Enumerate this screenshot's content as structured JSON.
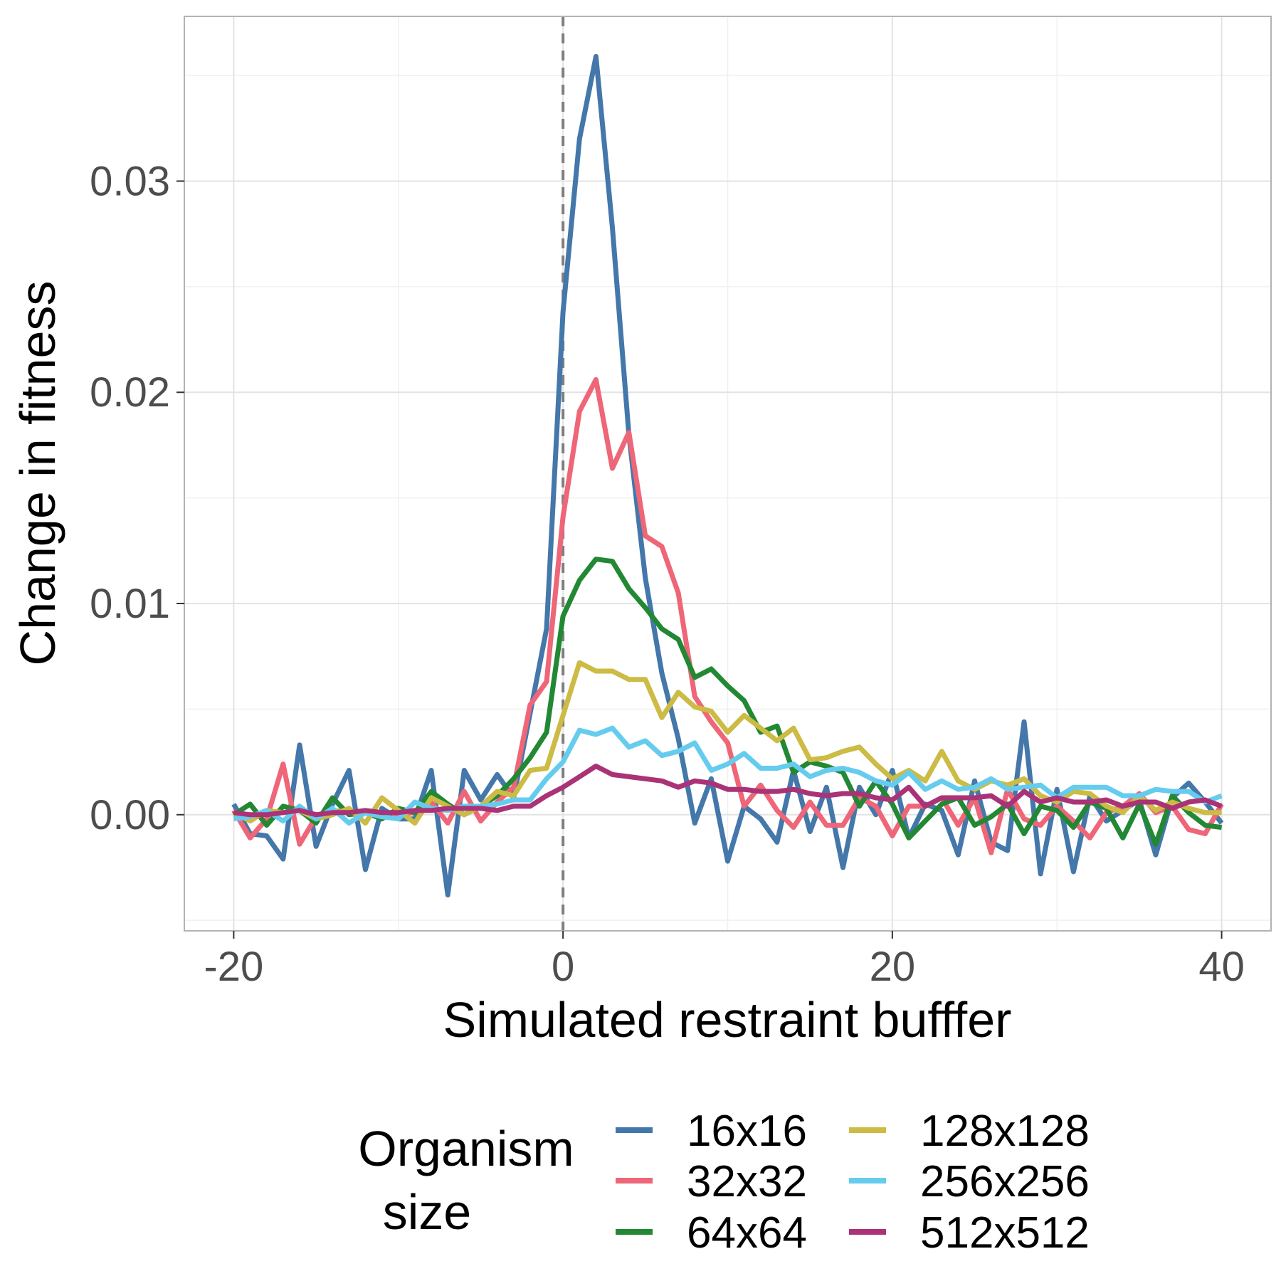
{
  "chart_data": {
    "type": "line",
    "xlabel": "Simulated restraint bufffer",
    "ylabel": "Change in fitness",
    "xlim": [
      -23,
      43
    ],
    "ylim": [
      -0.0055,
      0.0378
    ],
    "x_ticks": [
      -20,
      0,
      20,
      40
    ],
    "x_tick_labels": [
      "-20",
      "0",
      "20",
      "40"
    ],
    "y_ticks": [
      0.0,
      0.01,
      0.02,
      0.03
    ],
    "y_tick_labels": [
      "0.00",
      "0.01",
      "0.02",
      "0.03"
    ],
    "grid": true,
    "reference_line": {
      "x": 0,
      "style": "dashed"
    },
    "legend": {
      "title_lines": [
        "Organism",
        "size"
      ],
      "placement": "bottom",
      "columns": 2
    },
    "series": [
      {
        "name": "16x16",
        "color": "#4477AA",
        "x": [
          -20,
          -19,
          -18,
          -17,
          -16,
          -15,
          -14,
          -13,
          -12,
          -11,
          -10,
          -9,
          -8,
          -7,
          -6,
          -5,
          -4,
          -3,
          -2,
          -1,
          0,
          1,
          2,
          3,
          4,
          5,
          6,
          7,
          8,
          9,
          10,
          11,
          12,
          13,
          14,
          15,
          16,
          17,
          18,
          19,
          20,
          21,
          22,
          23,
          24,
          25,
          26,
          27,
          28,
          29,
          30,
          31,
          32,
          33,
          34,
          35,
          36,
          37,
          38,
          39,
          40
        ],
        "y": [
          0.0005,
          -0.0009,
          -0.001,
          -0.0021,
          0.0033,
          -0.0015,
          0.0005,
          0.0021,
          -0.0026,
          0.0003,
          -0.0002,
          -0.0002,
          0.0021,
          -0.0038,
          0.0021,
          0.0007,
          0.0019,
          0.0008,
          0.0048,
          0.0088,
          0.0238,
          0.032,
          0.0359,
          0.0278,
          0.018,
          0.0112,
          0.0067,
          0.0036,
          -0.0004,
          0.0017,
          -0.0022,
          0.0004,
          -0.0002,
          -0.0013,
          0.0021,
          -0.0008,
          0.0013,
          -0.0025,
          0.0013,
          0.0,
          0.0021,
          -0.0011,
          0.0005,
          0.0002,
          -0.0019,
          0.0016,
          -0.0013,
          -0.0017,
          0.0044,
          -0.0028,
          0.0012,
          -0.0027,
          0.0009,
          -0.0003,
          0.0002,
          0.0007,
          -0.0019,
          0.0008,
          0.0015,
          0.0006,
          -0.0004
        ]
      },
      {
        "name": "32x32",
        "color": "#EE6677",
        "x": [
          -20,
          -19,
          -18,
          -17,
          -16,
          -15,
          -14,
          -13,
          -12,
          -11,
          -10,
          -9,
          -8,
          -7,
          -6,
          -5,
          -4,
          -3,
          -2,
          -1,
          0,
          1,
          2,
          3,
          4,
          5,
          6,
          7,
          8,
          9,
          10,
          11,
          12,
          13,
          14,
          15,
          16,
          17,
          18,
          19,
          20,
          21,
          22,
          23,
          24,
          25,
          26,
          27,
          28,
          29,
          30,
          31,
          32,
          33,
          34,
          35,
          36,
          37,
          38,
          39,
          40
        ],
        "y": [
          0.0002,
          -0.0011,
          -0.0002,
          0.0024,
          -0.0014,
          -0.0001,
          0.0002,
          0.0001,
          0.0001,
          0.0,
          0.0,
          0.0001,
          0.0006,
          -0.0004,
          0.0011,
          -0.0003,
          0.0006,
          0.0013,
          0.0052,
          0.0063,
          0.0141,
          0.0191,
          0.0206,
          0.0164,
          0.0181,
          0.0132,
          0.0127,
          0.0105,
          0.0056,
          0.0044,
          0.0034,
          0.0004,
          0.0014,
          0.0002,
          -0.0006,
          0.0006,
          -0.0005,
          -0.0005,
          0.0008,
          0.0004,
          -0.001,
          0.0004,
          0.0004,
          0.0008,
          -0.0005,
          0.0008,
          -0.0018,
          0.0012,
          -0.0002,
          -0.0005,
          0.0004,
          -0.0003,
          -0.0011,
          0.0001,
          0.0004,
          0.001,
          0.0001,
          0.0004,
          -0.0007,
          -0.0009,
          0.0005
        ]
      },
      {
        "name": "64x64",
        "color": "#228833",
        "x": [
          -20,
          -19,
          -18,
          -17,
          -16,
          -15,
          -14,
          -13,
          -12,
          -11,
          -10,
          -9,
          -8,
          -7,
          -6,
          -5,
          -4,
          -3,
          -2,
          -1,
          0,
          1,
          2,
          3,
          4,
          5,
          6,
          7,
          8,
          9,
          10,
          11,
          12,
          13,
          14,
          15,
          16,
          17,
          18,
          19,
          20,
          21,
          22,
          23,
          24,
          25,
          26,
          27,
          28,
          29,
          30,
          31,
          32,
          33,
          34,
          35,
          36,
          37,
          38,
          39,
          40
        ],
        "y": [
          0.0,
          0.0005,
          -0.0005,
          0.0004,
          0.0002,
          -0.0004,
          0.0008,
          0.0,
          0.0001,
          -0.0002,
          0.0003,
          0.0001,
          0.0011,
          0.0005,
          0.0,
          0.0004,
          0.0009,
          0.0017,
          0.0027,
          0.0039,
          0.0094,
          0.0111,
          0.0121,
          0.012,
          0.0107,
          0.0098,
          0.0088,
          0.0083,
          0.0065,
          0.0069,
          0.0061,
          0.0054,
          0.0039,
          0.0042,
          0.002,
          0.0025,
          0.0023,
          0.002,
          0.0004,
          0.0016,
          0.0005,
          -0.0011,
          -0.0003,
          0.0005,
          0.0008,
          -0.0005,
          -0.0001,
          0.0005,
          -0.0009,
          0.0004,
          0.0002,
          -0.0006,
          0.0006,
          0.0003,
          -0.0011,
          0.0005,
          -0.0014,
          0.0009,
          0.0001,
          -0.0005,
          -0.0006
        ]
      },
      {
        "name": "128x128",
        "color": "#CCBB44",
        "x": [
          -20,
          -19,
          -18,
          -17,
          -16,
          -15,
          -14,
          -13,
          -12,
          -11,
          -10,
          -9,
          -8,
          -7,
          -6,
          -5,
          -4,
          -3,
          -2,
          -1,
          0,
          1,
          2,
          3,
          4,
          5,
          6,
          7,
          8,
          9,
          10,
          11,
          12,
          13,
          14,
          15,
          16,
          17,
          18,
          19,
          20,
          21,
          22,
          23,
          24,
          25,
          26,
          27,
          28,
          29,
          30,
          31,
          32,
          33,
          34,
          35,
          36,
          37,
          38,
          39,
          40
        ],
        "y": [
          0.0001,
          -0.0003,
          0.0002,
          0.0001,
          0.0002,
          -0.0002,
          0.0,
          0.0003,
          -0.0004,
          0.0008,
          0.0002,
          -0.0004,
          0.0008,
          0.0004,
          0.0,
          0.0004,
          0.0011,
          0.0009,
          0.0021,
          0.0022,
          0.0047,
          0.0072,
          0.0068,
          0.0068,
          0.0064,
          0.0064,
          0.0046,
          0.0058,
          0.0051,
          0.0049,
          0.0039,
          0.0047,
          0.0041,
          0.0035,
          0.0041,
          0.0026,
          0.0027,
          0.003,
          0.0032,
          0.0024,
          0.0017,
          0.0021,
          0.0016,
          0.003,
          0.0016,
          0.0012,
          0.0016,
          0.0014,
          0.0017,
          0.0009,
          0.0006,
          0.0011,
          0.001,
          0.0004,
          0.0001,
          0.0009,
          0.0002,
          0.0006,
          0.0003,
          0.0001,
          0.0001
        ]
      },
      {
        "name": "256x256",
        "color": "#66CCEE",
        "x": [
          -20,
          -19,
          -18,
          -17,
          -16,
          -15,
          -14,
          -13,
          -12,
          -11,
          -10,
          -9,
          -8,
          -7,
          -6,
          -5,
          -4,
          -3,
          -2,
          -1,
          0,
          1,
          2,
          3,
          4,
          5,
          6,
          7,
          8,
          9,
          10,
          11,
          12,
          13,
          14,
          15,
          16,
          17,
          18,
          19,
          20,
          21,
          22,
          23,
          24,
          25,
          26,
          27,
          28,
          29,
          30,
          31,
          32,
          33,
          34,
          35,
          36,
          37,
          38,
          39,
          40
        ],
        "y": [
          -0.0002,
          -0.0001,
          0.0002,
          -0.0003,
          0.0004,
          -0.0002,
          0.0003,
          -0.0004,
          0.0001,
          -0.0001,
          -0.0002,
          0.0006,
          0.0003,
          0.0002,
          0.0004,
          0.0004,
          0.0005,
          0.0007,
          0.0007,
          0.0017,
          0.0025,
          0.004,
          0.0038,
          0.0041,
          0.0032,
          0.0035,
          0.0028,
          0.003,
          0.0034,
          0.0021,
          0.0024,
          0.0029,
          0.0022,
          0.0022,
          0.0024,
          0.0018,
          0.0021,
          0.0022,
          0.002,
          0.0016,
          0.0014,
          0.002,
          0.0012,
          0.0016,
          0.0012,
          0.0013,
          0.0017,
          0.0012,
          0.0013,
          0.0014,
          0.0008,
          0.0013,
          0.0013,
          0.0013,
          0.0009,
          0.0009,
          0.0012,
          0.0011,
          0.0011,
          0.0006,
          0.0009
        ]
      },
      {
        "name": "512x512",
        "color": "#AA3377",
        "x": [
          -20,
          -19,
          -18,
          -17,
          -16,
          -15,
          -14,
          -13,
          -12,
          -11,
          -10,
          -9,
          -8,
          -7,
          -6,
          -5,
          -4,
          -3,
          -2,
          -1,
          0,
          1,
          2,
          3,
          4,
          5,
          6,
          7,
          8,
          9,
          10,
          11,
          12,
          13,
          14,
          15,
          16,
          17,
          18,
          19,
          20,
          21,
          22,
          23,
          24,
          25,
          26,
          27,
          28,
          29,
          30,
          31,
          32,
          33,
          34,
          35,
          36,
          37,
          38,
          39,
          40
        ],
        "y": [
          0.0001,
          0.0,
          0.0,
          0.0001,
          0.0002,
          0.0,
          0.0001,
          0.0001,
          0.0002,
          0.0001,
          0.0001,
          0.0002,
          0.0002,
          0.0003,
          0.0003,
          0.0003,
          0.0002,
          0.0004,
          0.0004,
          0.0009,
          0.0013,
          0.0018,
          0.0023,
          0.0019,
          0.0018,
          0.0017,
          0.0016,
          0.0013,
          0.0016,
          0.0015,
          0.0012,
          0.0012,
          0.0011,
          0.0011,
          0.0012,
          0.001,
          0.0009,
          0.001,
          0.001,
          0.0008,
          0.0007,
          0.0013,
          0.0004,
          0.0008,
          0.0008,
          0.0008,
          0.0009,
          0.0004,
          0.0011,
          0.0006,
          0.0008,
          0.0006,
          0.0006,
          0.0007,
          0.0004,
          0.0006,
          0.0006,
          0.0003,
          0.0006,
          0.0007,
          0.0004
        ]
      }
    ]
  }
}
